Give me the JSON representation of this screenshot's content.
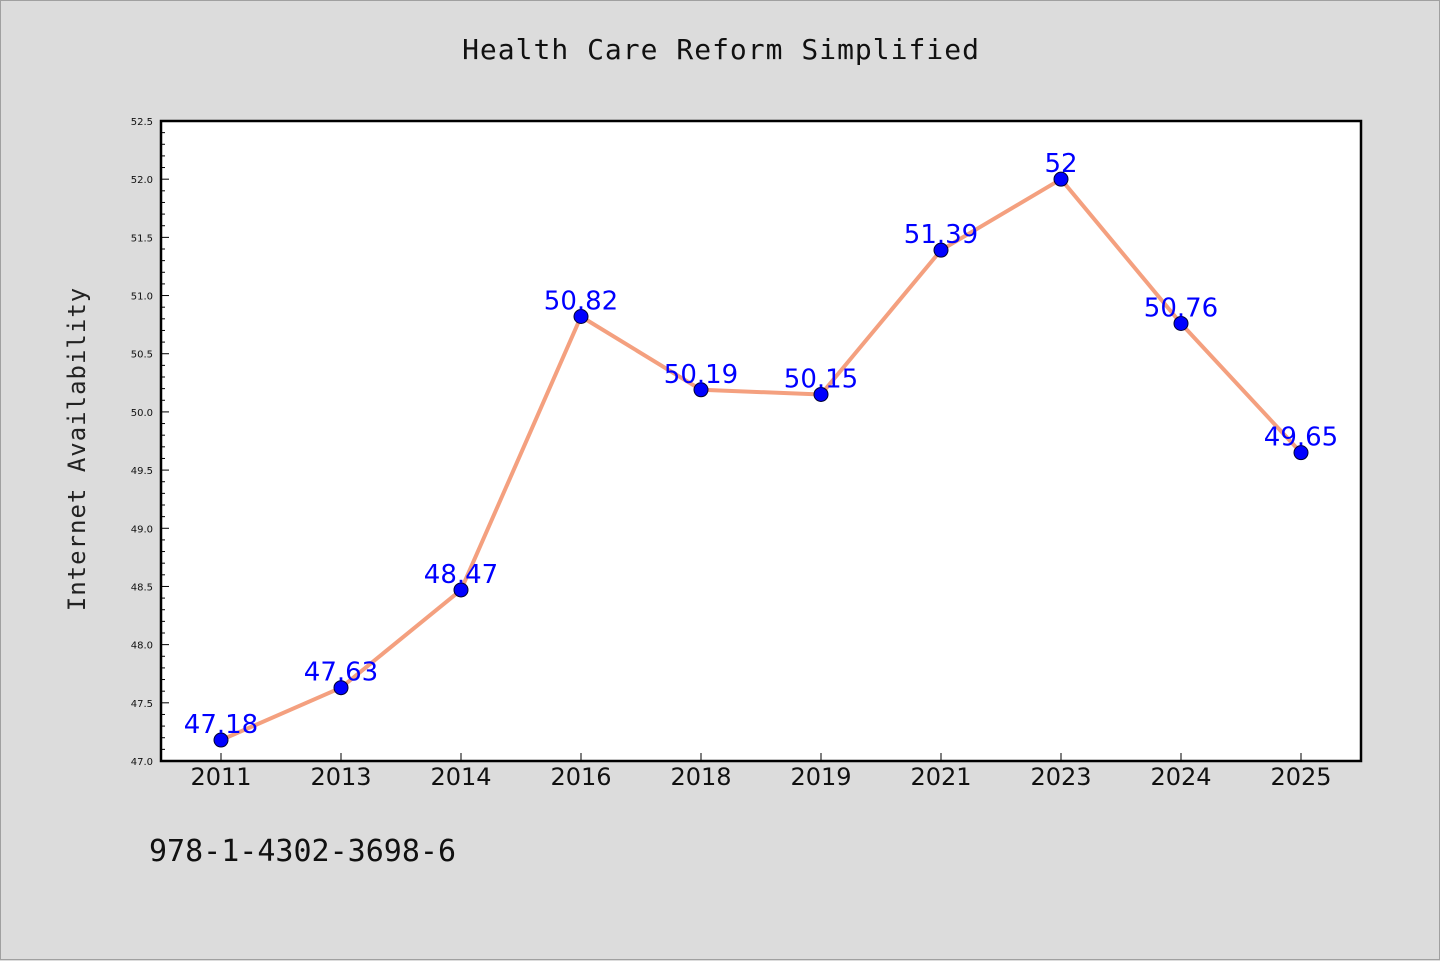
{
  "chart_data": {
    "type": "line",
    "title": "Health Care Reform Simplified",
    "ylabel": "Internet Availability",
    "xlabel": "",
    "categories": [
      "2011",
      "2013",
      "2014",
      "2016",
      "2018",
      "2019",
      "2021",
      "2023",
      "2024",
      "2025"
    ],
    "values": [
      47.18,
      47.63,
      48.47,
      50.82,
      50.19,
      50.15,
      51.39,
      52,
      50.76,
      49.65
    ],
    "data_labels": [
      "47.18",
      "47.63",
      "48.47",
      "50.82",
      "50.19",
      "50.15",
      "51.39",
      "52",
      "50.76",
      "49.65"
    ],
    "ylim": [
      47.0,
      52.5
    ],
    "yticks": [
      "47.0",
      "47.5",
      "48.0",
      "48.5",
      "49.0",
      "49.5",
      "50.0",
      "50.5",
      "51.0",
      "51.5",
      "52.0",
      "52.5"
    ],
    "grid": false,
    "line_color": "#f4a07f",
    "marker_color": "#0000ff",
    "label_color": "#0000ff"
  },
  "footer": {
    "code": "978-1-4302-3698-6"
  }
}
